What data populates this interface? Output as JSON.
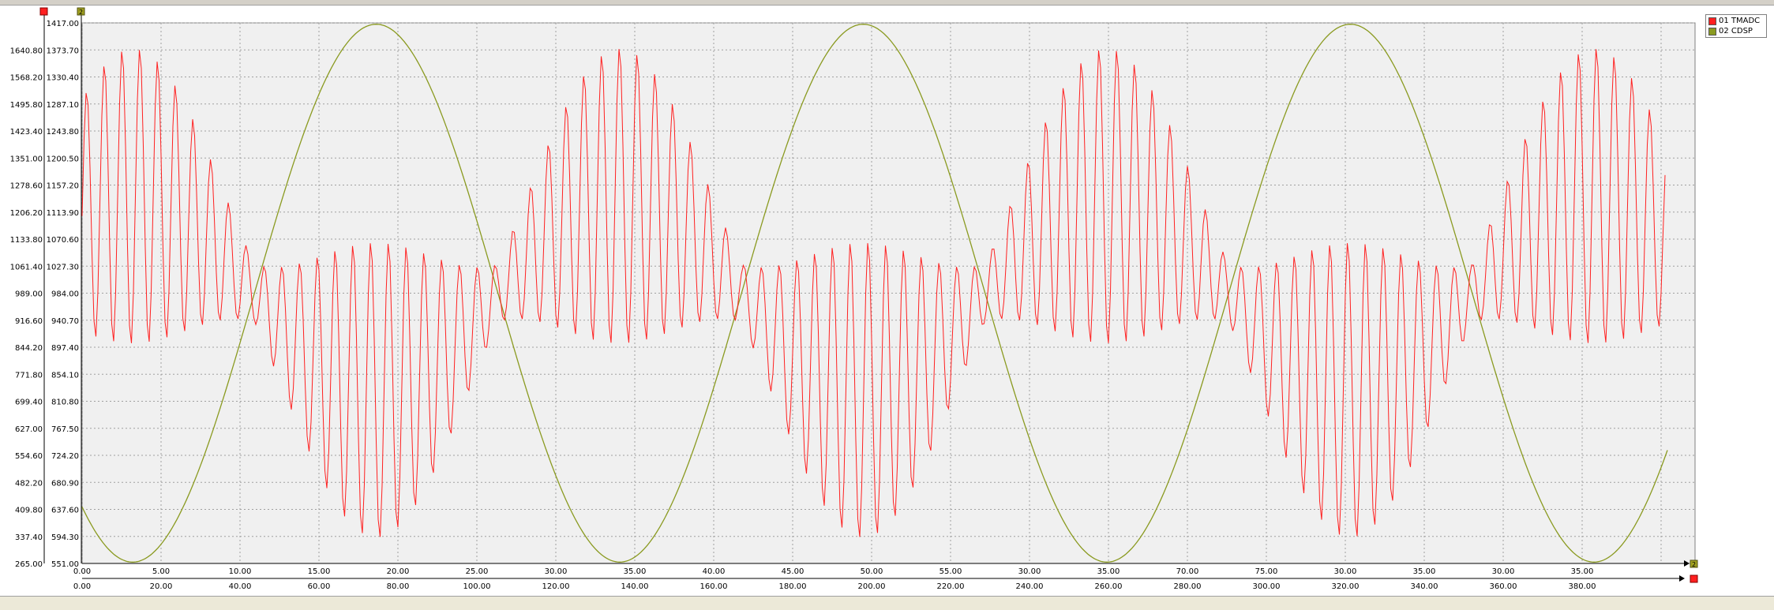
{
  "chart_data": {
    "type": "line",
    "grid": true,
    "legend_placement": "top-right",
    "series": [
      {
        "name": "01 TMADC",
        "color": "#ff2020",
        "axis": "left",
        "x_axis": "top",
        "ylim": [
          265.0,
          1713.2
        ],
        "xlim": [
          0,
          51.0
        ],
        "values_note_free": true,
        "amplitude_center": 989.2,
        "y_ticks": [
          "265.00",
          "337.40",
          "409.80",
          "482.20",
          "554.60",
          "627.00",
          "699.40",
          "771.80",
          "844.20",
          "916.60",
          "989.00",
          "1061.40",
          "1133.80",
          "1206.20",
          "1278.60",
          "1351.00",
          "1423.40",
          "1495.80",
          "1568.20",
          "1640.80"
        ],
        "x_ticks": [
          "0.00",
          "5.00",
          "10.00",
          "15.00",
          "20.00",
          "25.00",
          "30.00",
          "35.00",
          "40.00",
          "45.00",
          "50.00",
          "55.00",
          "30.00",
          "35.00",
          "70.00",
          "75.00",
          "30.00",
          "35.00",
          "30.00",
          "35.00"
        ]
      },
      {
        "name": "02 CDSP",
        "color": "#8a9a20",
        "axis": "right",
        "x_axis": "bottom",
        "ylim": [
          551.0,
          1417.0
        ],
        "xlim": [
          0,
          400.0
        ],
        "y_ticks": [
          "551.00",
          "594.30",
          "637.60",
          "680.90",
          "724.20",
          "767.50",
          "810.80",
          "854.10",
          "897.40",
          "940.70",
          "984.00",
          "1027.30",
          "1070.60",
          "1113.90",
          "1157.20",
          "1200.50",
          "1243.80",
          "1287.10",
          "1330.40",
          "1373.70",
          "1417.00"
        ],
        "x_ticks": [
          "0.00",
          "20.00",
          "40.00",
          "60.00",
          "80.00",
          "100.00",
          "120.00",
          "140.00",
          "160.00",
          "180.00",
          "200.00",
          "220.00",
          "240.00",
          "260.00",
          "280.00",
          "300.00",
          "320.00",
          "340.00",
          "360.00",
          "380.00"
        ]
      }
    ],
    "markers": {
      "series1": "1",
      "series2": "2"
    }
  },
  "legend": {
    "items": [
      {
        "label": "01 TMADC",
        "color": "#ff2020"
      },
      {
        "label": "02 CDSP",
        "color": "#8a9a20"
      }
    ]
  }
}
